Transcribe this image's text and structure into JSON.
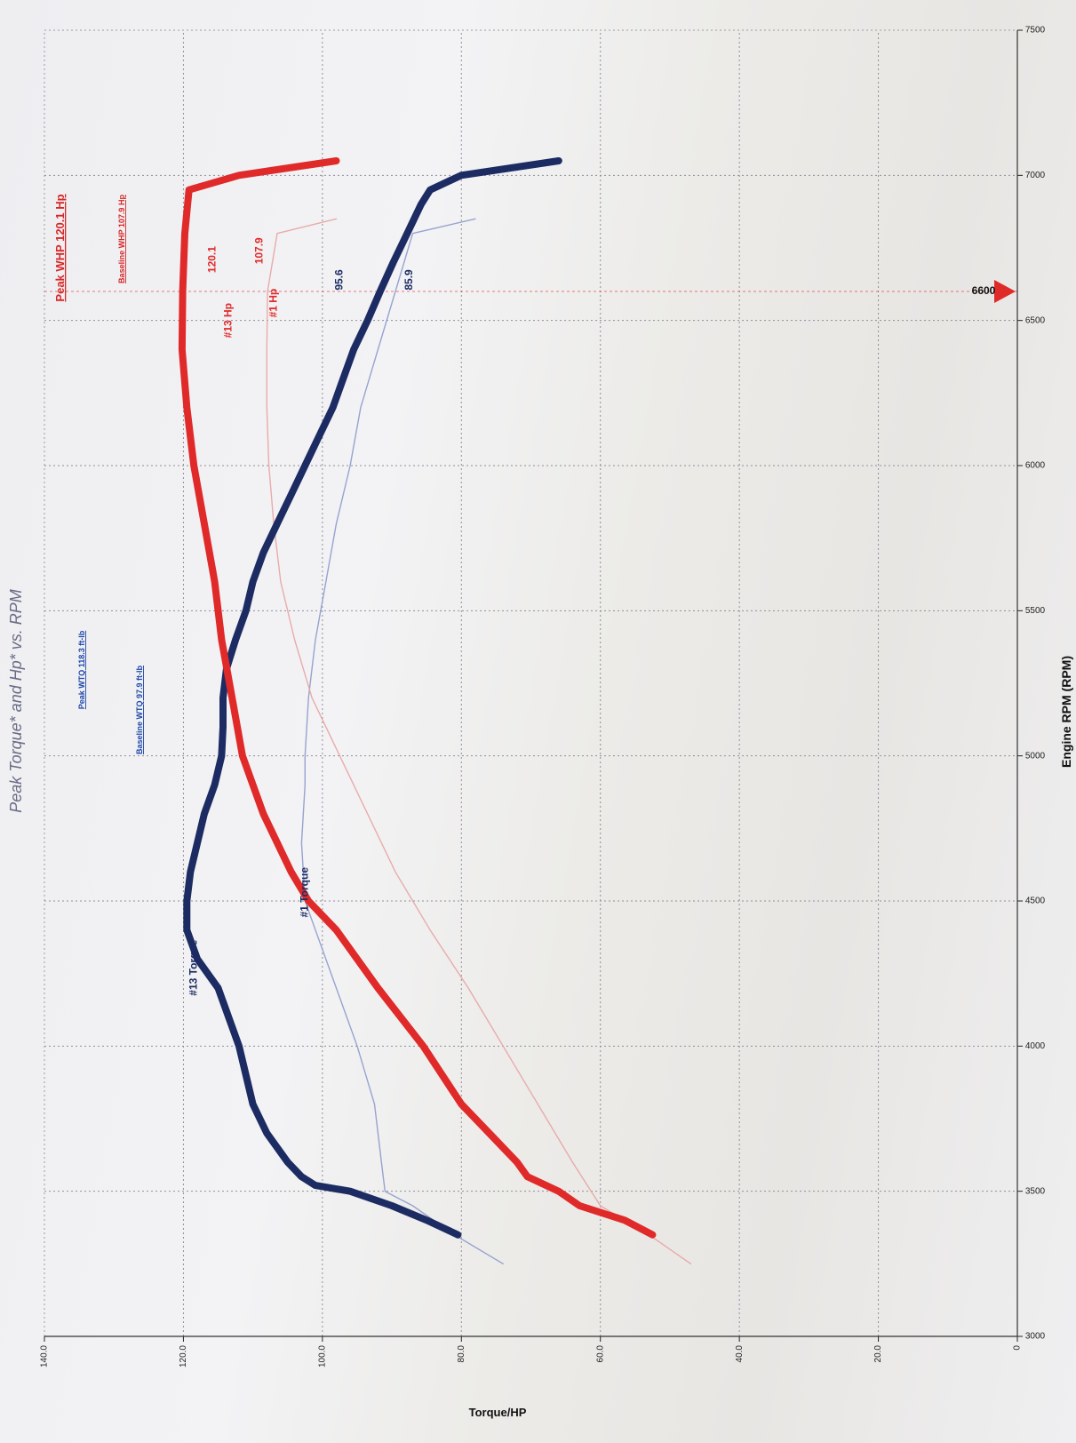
{
  "chart_data": {
    "type": "line",
    "title": "Peak Torque* and Hp* vs. RPM",
    "xlabel": "Engine RPM (RPM)",
    "ylabel": "Torque/HP",
    "xlim": [
      3000,
      7500
    ],
    "ylim": [
      0,
      140
    ],
    "xticks": [
      "3000",
      "3500",
      "4000",
      "4500",
      "5000",
      "5500",
      "6000",
      "6500",
      "7000",
      "7500"
    ],
    "yticks": [
      "0",
      "20.0",
      "40.0",
      "60.0",
      "80.0",
      "100.0",
      "120.0",
      "140.0"
    ],
    "grid": true,
    "orientation": "rotated 90° counter-clockwise",
    "series": [
      {
        "name": "#13 Torque",
        "color": "#1c2c63",
        "style": "bold",
        "x": [
          3350,
          3400,
          3450,
          3500,
          3520,
          3550,
          3600,
          3700,
          3800,
          4000,
          4200,
          4300,
          4400,
          4500,
          4600,
          4700,
          4800,
          4900,
          5000,
          5100,
          5200,
          5300,
          5400,
          5500,
          5600,
          5700,
          5800,
          5900,
          6000,
          6100,
          6200,
          6300,
          6400,
          6500,
          6600,
          6700,
          6800,
          6900,
          6950,
          7000,
          7050
        ],
        "y": [
          80.5,
          85,
          90,
          96,
          101,
          103,
          105,
          108,
          110,
          112,
          115,
          118,
          119.5,
          119.5,
          119,
          118,
          117,
          115.5,
          114.5,
          114.3,
          114.3,
          113.8,
          112.5,
          111,
          110,
          108.5,
          106.5,
          104.5,
          102.5,
          100.5,
          98.5,
          97,
          95.5,
          93.5,
          91.7,
          89.8,
          87.8,
          85.8,
          84.5,
          80,
          66
        ]
      },
      {
        "name": "#13 Hp",
        "color": "#e02a2a",
        "style": "bold",
        "x": [
          3350,
          3400,
          3450,
          3500,
          3550,
          3600,
          3700,
          3800,
          4000,
          4200,
          4400,
          4500,
          4600,
          4800,
          5000,
          5200,
          5400,
          5600,
          5800,
          6000,
          6200,
          6400,
          6600,
          6800,
          6950,
          7000,
          7050
        ],
        "y": [
          52.5,
          56.5,
          63,
          66,
          70.5,
          72,
          76,
          80,
          85.5,
          92,
          98,
          102,
          104.5,
          108.5,
          111.5,
          113,
          114.5,
          115.5,
          117,
          118.5,
          119.5,
          120.2,
          120.1,
          119.8,
          119.2,
          112,
          98
        ]
      },
      {
        "name": "#1 Torque",
        "color": "#8d9acb",
        "style": "thin",
        "x": [
          3250,
          3350,
          3450,
          3500,
          3600,
          3800,
          4000,
          4200,
          4400,
          4500,
          4700,
          4900,
          5000,
          5200,
          5400,
          5600,
          5800,
          6000,
          6200,
          6400,
          6600,
          6800,
          6850
        ],
        "y": [
          74,
          81,
          87,
          91,
          91.5,
          92.5,
          95,
          98,
          101,
          102.5,
          103,
          102.5,
          102.5,
          102,
          101,
          99.5,
          98,
          96,
          94.5,
          92,
          89.5,
          87,
          78
        ]
      },
      {
        "name": "#1 Hp",
        "color": "#e7a3a3",
        "style": "thin",
        "x": [
          3250,
          3350,
          3450,
          3600,
          3800,
          4000,
          4200,
          4400,
          4600,
          4800,
          5000,
          5200,
          5400,
          5600,
          5800,
          6000,
          6200,
          6400,
          6600,
          6800,
          6850
        ],
        "y": [
          47,
          53,
          60,
          64,
          69,
          74,
          79,
          84.5,
          89.5,
          93.5,
          97.5,
          101.5,
          104,
          106,
          107,
          107.7,
          108,
          108,
          107.9,
          106.5,
          98
        ]
      }
    ],
    "annotations": [
      {
        "text": "#13 Torque",
        "color": "#1c2c63",
        "x": 4270,
        "y": 118.5
      },
      {
        "text": "#1 Torque",
        "color": "#1c2c63",
        "x": 4530,
        "y": 102.5
      },
      {
        "text": "#13 Hp",
        "color": "#e02a2a",
        "x": 6500,
        "y": 113.5
      },
      {
        "text": "120.1",
        "color": "#e02a2a",
        "x": 6710,
        "y": 115.8
      },
      {
        "text": "#1 Hp",
        "color": "#e02a2a",
        "x": 6560,
        "y": 107
      },
      {
        "text": "107.9",
        "color": "#e02a2a",
        "x": 6740,
        "y": 109
      },
      {
        "text": "95.6",
        "color": "#1c2c63",
        "x": 6640,
        "y": 97.5
      },
      {
        "text": "85.9",
        "color": "#1c2c63",
        "x": 6640,
        "y": 87.5
      }
    ],
    "legend": [
      {
        "text": "Peak WTQ 118.3 ft-lb",
        "color": "#1f47a8"
      },
      {
        "text": "Baseline WTQ 97.9 ft-lb",
        "color": "#1f47a8"
      },
      {
        "text": "Peak WHP 120.1 Hp",
        "color": "#d62828"
      },
      {
        "text": "Baseline WHP 107.9 Hp",
        "color": "#d62828"
      }
    ],
    "cursor": {
      "label": "6600",
      "x": 6600,
      "color": "#e02a2a"
    }
  }
}
